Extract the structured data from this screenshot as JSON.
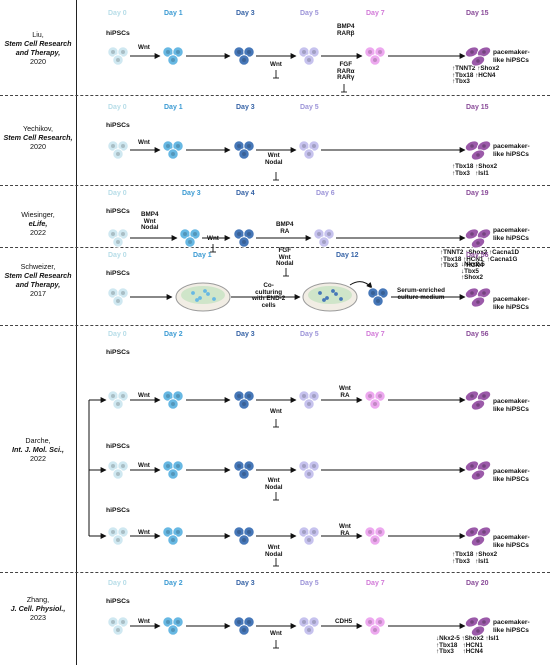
{
  "colors": {
    "day0": "#b7dde8",
    "day1": "#3c9bd3",
    "day3": "#3663a6",
    "day5": "#9c94d8",
    "day7": "#d27ad8",
    "final": "#8a4c99",
    "cell_light": "#cfe8f1",
    "cell_blue": "#67b8e3",
    "cell_dark": "#4677b8",
    "cell_lav": "#c6c2ee",
    "cell_pink": "#eda8ef",
    "cell_pace": "#9b5aa9"
  },
  "rows": [
    {
      "ref": {
        "author": "Liu,",
        "journal": "Stem Cell Research and Therapy,",
        "year": "2020"
      },
      "days": [
        "Day 0",
        "Day 1",
        "Day 3",
        "Day 5",
        "Day 7",
        "Day 15"
      ],
      "start_label": "hiPSCs",
      "factors": {
        "wnt1": "Wnt",
        "wnt_inhib": "Wnt",
        "f5_top": "BMP4\nRARβ",
        "f5_bottom": "FGF\nRARα\nRARγ"
      },
      "markers": "↑TNNT2 ↑Shox2\n↑Tbx18 ↑HCN4\n↑Tbx3",
      "result": "pacemaker-\nlike hiPSCs"
    },
    {
      "ref": {
        "author": "Yechikov,",
        "journal": "Stem Cell Research,",
        "year": "2020"
      },
      "days": [
        "Day 0",
        "Day 1",
        "Day 3",
        "Day 5",
        "Day 15"
      ],
      "start_label": "hiPSCs",
      "factors": {
        "wnt1": "Wnt",
        "inhib": "Wnt\nNodal"
      },
      "markers": "↑Tbx18 ↑Shox2\n↑Tbx3   ↑Isl1",
      "result": "pacemaker-\nlike hiPSCs"
    },
    {
      "ref": {
        "author": "Wiesinger,",
        "journal": "eLife,",
        "year": "2022"
      },
      "days": [
        "Day 0",
        "Day 3",
        "Day 4",
        "Day 6",
        "Day 19"
      ],
      "start_label": "hiPSCs",
      "factors": {
        "f1": "BMP4\nWnt\nNodal",
        "wnt_inhib": "Wnt",
        "f4_top": "BMP4\nRA",
        "f4_bottom": "FGF\nWnt\nNodal"
      },
      "markers": "↑TNNT2 ↑Shox2 ↑Cacna1D\n↑Tbx18 ↑HCN1  ↑Cacna1G\n↑Tbx3   ↑HCN4",
      "result": "pacemaker-\nlike hiPSCs"
    },
    {
      "ref": {
        "author": "Schweizer,",
        "journal": "Stem Cell Research and Therapy,",
        "year": "2017"
      },
      "days": [
        "Day 0",
        "Day 1",
        "Day 12",
        "Day 56"
      ],
      "start_label": "hiPSCs",
      "factors": {
        "coculture": "Co-\nculturing\nwith END-2\ncells",
        "serum": "Serum-enriched\nculture medium"
      },
      "markers": "↓Nkx2-5\n↓Tbx5\n↑Shox2",
      "result": "pacemaker-\nlike hiPSCs"
    },
    {
      "ref": {
        "author": "Darche,",
        "journal": "Int. J. Mol. Sci.,",
        "year": "2022"
      },
      "days": [
        "Day 0",
        "Day 2",
        "Day 3",
        "Day 5",
        "Day 7",
        "Day 56"
      ],
      "start_label": "hiPSCs",
      "sub_a": {
        "wnt1": "Wnt",
        "wnt_inhib": "Wnt",
        "f5": "Wnt\nRA"
      },
      "sub_b": {
        "wnt1": "Wnt",
        "inhib": "Wnt\nNodal"
      },
      "sub_c": {
        "wnt1": "Wnt",
        "inhib": "Wnt\nNodal",
        "f5": "Wnt\nRA"
      },
      "markers": "↑Tbx18 ↑Shox2\n↑Tbx3   ↑Isl1",
      "result": "pacemaker-\nlike hiPSCs"
    },
    {
      "ref": {
        "author": "Zhang,",
        "journal": "J. Cell. Physiol.,",
        "year": "2023"
      },
      "days": [
        "Day 0",
        "Day 2",
        "Day 3",
        "Day 5",
        "Day 7",
        "Day 20"
      ],
      "start_label": "hiPSCs",
      "factors": {
        "wnt1": "Wnt",
        "wnt_inhib": "Wnt",
        "f5": "CDH5"
      },
      "markers": "↓Nkx2-5 ↑Shox2 ↑Isl1\n↑Tbx18   ↑HCN1\n↑Tbx3     ↑HCN4",
      "result": "pacemaker-\nlike hiPSCs"
    }
  ]
}
